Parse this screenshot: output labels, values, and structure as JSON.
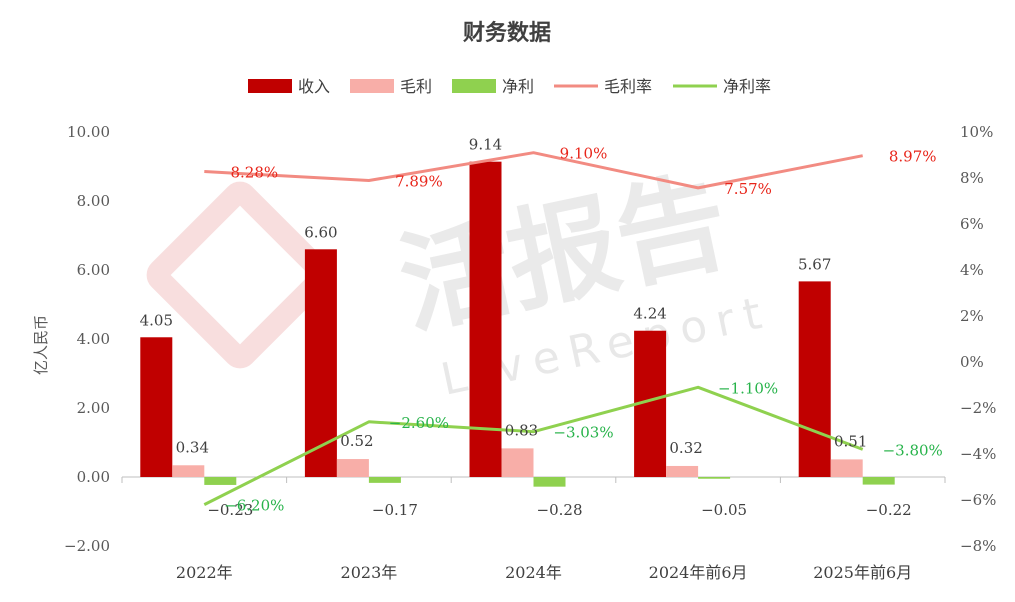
{
  "chart_data": {
    "type": "bar",
    "title": "财务数据",
    "categories": [
      "2022年",
      "2023年",
      "2024年",
      "2024年前6月",
      "2025年前6月"
    ],
    "series": [
      {
        "name": "收入",
        "kind": "bar",
        "axis": "left",
        "color": "#c00000",
        "values": [
          4.05,
          6.6,
          9.14,
          4.24,
          5.67
        ],
        "labels": [
          "4.05",
          "6.60",
          "9.14",
          "4.24",
          "5.67"
        ]
      },
      {
        "name": "毛利",
        "kind": "bar",
        "axis": "left",
        "color": "#f8aea8",
        "values": [
          0.34,
          0.52,
          0.83,
          0.32,
          0.51
        ],
        "labels": [
          "0.34",
          "0.52",
          "0.83",
          "0.32",
          "0.51"
        ]
      },
      {
        "name": "净利",
        "kind": "bar",
        "axis": "left",
        "color": "#8fd14f",
        "values": [
          -0.23,
          -0.17,
          -0.28,
          -0.05,
          -0.22
        ],
        "labels": [
          "−0.23",
          "−0.17",
          "−0.28",
          "−0.05",
          "−0.22"
        ]
      },
      {
        "name": "毛利率",
        "kind": "line",
        "axis": "right",
        "color": "#f28b82",
        "values": [
          8.28,
          7.89,
          9.1,
          7.57,
          8.97
        ],
        "labels": [
          "8.28%",
          "7.89%",
          "9.10%",
          "7.57%",
          "8.97%"
        ]
      },
      {
        "name": "净利率",
        "kind": "line",
        "axis": "right",
        "color": "#8fd14f",
        "values": [
          -6.2,
          -2.6,
          -3.03,
          -1.1,
          -3.8
        ],
        "labels": [
          "−6.20%",
          "−2.60%",
          "−3.03%",
          "−1.10%",
          "−3.80%"
        ]
      }
    ],
    "ylabel": "亿人民币",
    "ylim": [
      -2,
      10
    ],
    "yticks": [
      "−2.00",
      "0.00",
      "2.00",
      "4.00",
      "6.00",
      "8.00",
      "10.00"
    ],
    "y2lim": [
      -8,
      10
    ],
    "y2ticks": [
      "−8%",
      "−6%",
      "−4%",
      "−2%",
      "0%",
      "2%",
      "4%",
      "6%",
      "8%",
      "10%"
    ],
    "legend_position": "top",
    "grid": false
  },
  "watermark": {
    "text": "活报告",
    "subtext": "LiveReport"
  }
}
